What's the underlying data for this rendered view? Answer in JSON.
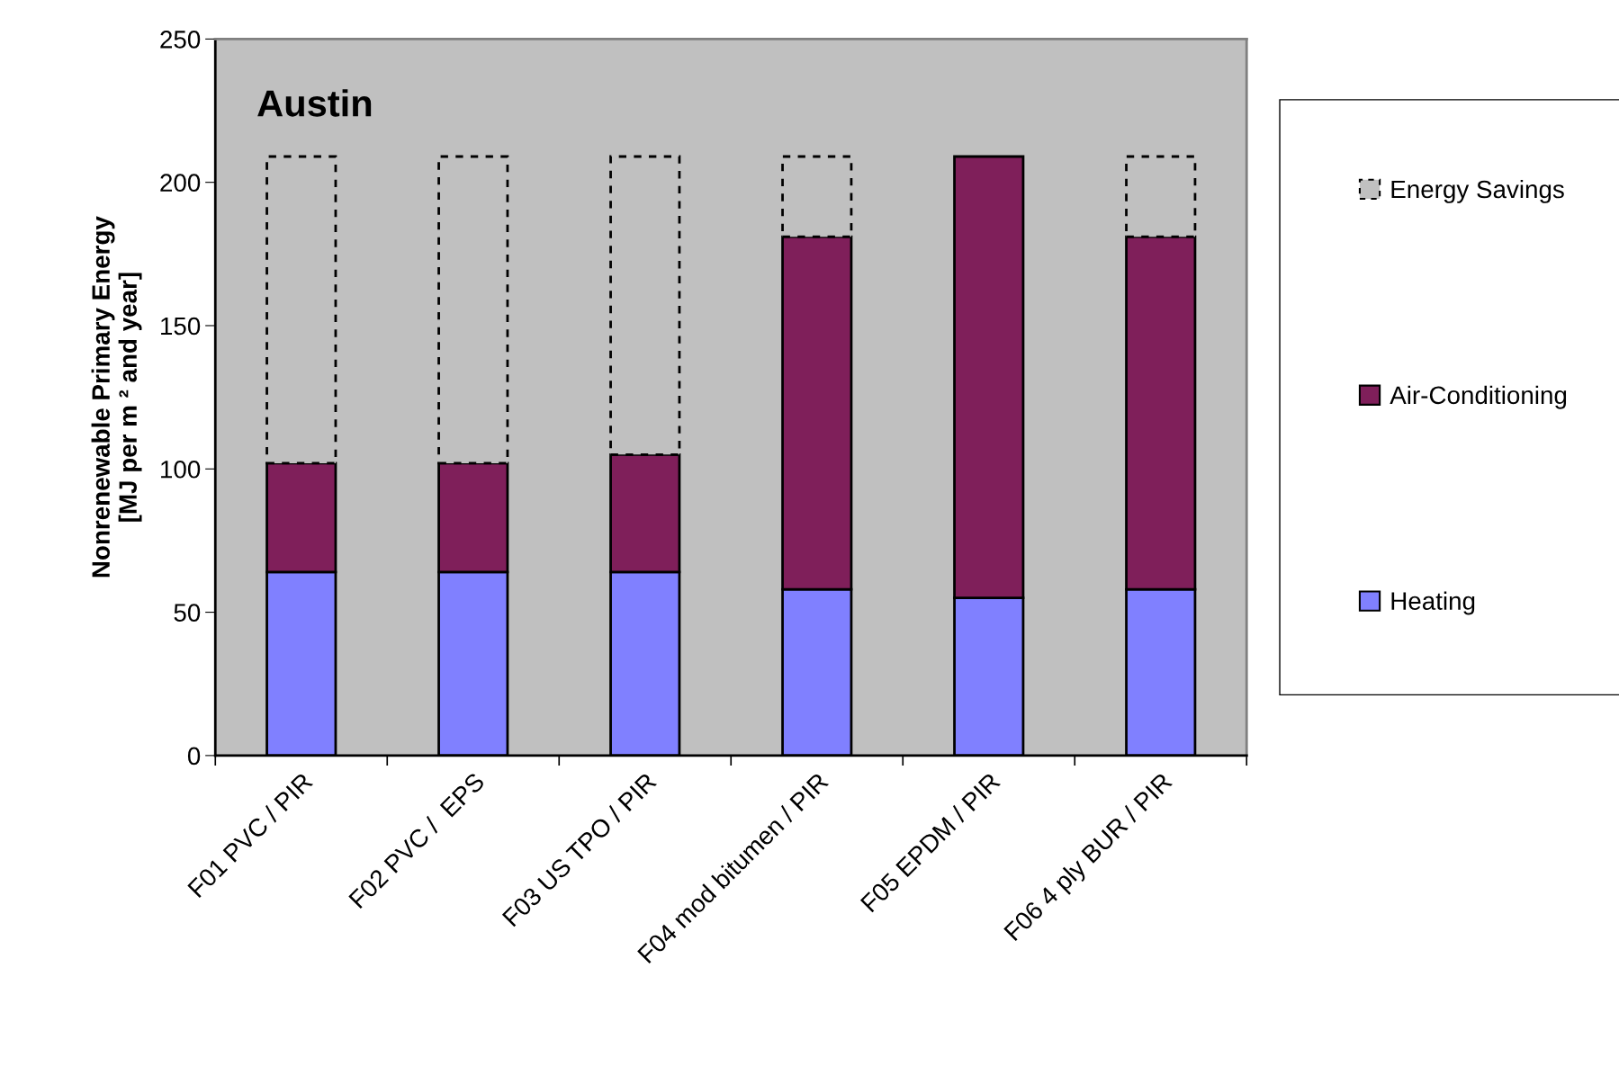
{
  "chart_data": {
    "type": "bar",
    "stacked": true,
    "title": "Austin",
    "ylabel": "Nonrenewable Primary Energy\n[MJ per m ² and year]",
    "categories": [
      "F01 PVC / PIR",
      "F02 PVC /  EPS",
      "F03 US TPO / PIR",
      "F04 mod bitumen / PIR",
      "F05 EPDM / PIR",
      "F06 4 ply BUR / PIR"
    ],
    "series": [
      {
        "name": "Heating",
        "color": "#8080ff",
        "values": [
          64,
          64,
          64,
          58,
          55,
          58
        ]
      },
      {
        "name": "Air-Conditioning",
        "color": "#7f1f5a",
        "values": [
          38,
          38,
          41,
          123,
          154,
          123
        ]
      },
      {
        "name": "Energy Savings",
        "color": "#c0c0c0",
        "line_style": "dashed",
        "values": [
          107,
          107,
          104,
          28,
          0,
          28
        ]
      }
    ],
    "ylim": [
      0,
      250
    ],
    "yticks": [
      0,
      50,
      100,
      150,
      200,
      250
    ],
    "grid": false,
    "legend": "right"
  }
}
